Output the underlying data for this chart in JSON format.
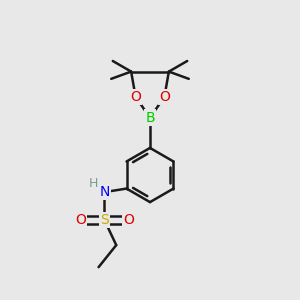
{
  "background_color": "#e8e8e8",
  "bond_color": "#1a1a1a",
  "atom_colors": {
    "O": "#e00000",
    "B": "#00cc00",
    "N": "#0000ff",
    "S": "#ccaa00",
    "C": "#1a1a1a",
    "H": "#7a9a9a"
  },
  "figsize": [
    3.0,
    3.0
  ],
  "dpi": 100,
  "xlim": [
    0,
    10
  ],
  "ylim": [
    0,
    10
  ]
}
